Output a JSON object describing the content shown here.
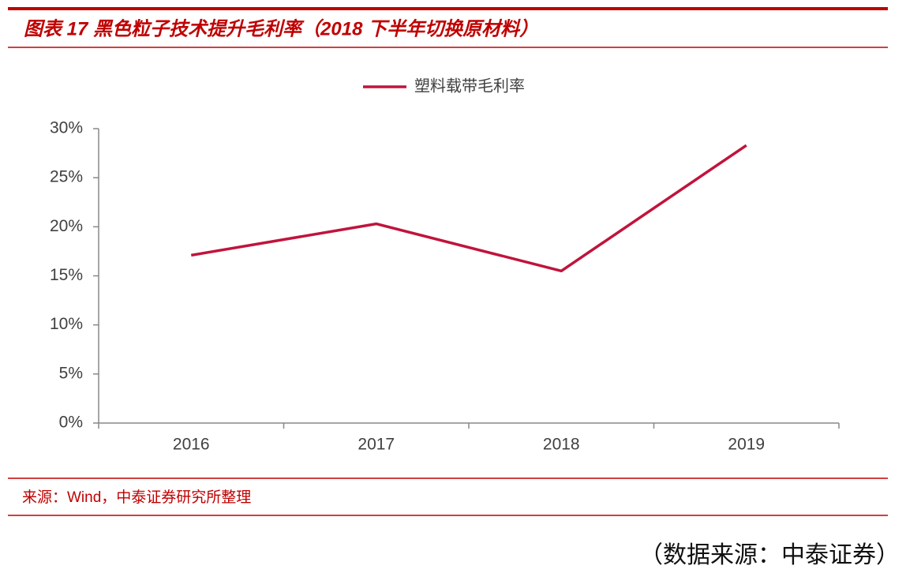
{
  "chart_data": {
    "type": "line",
    "title": "图表 17 黑色粒子技术提升毛利率（2018 下半年切换原材料）",
    "categories": [
      "2016",
      "2017",
      "2018",
      "2019"
    ],
    "series": [
      {
        "name": "塑料载带毛利率",
        "color": "#c0143c",
        "values": [
          17.1,
          20.3,
          15.5,
          28.3
        ]
      }
    ],
    "ylim": [
      0,
      30
    ],
    "yticks": [
      {
        "value": 0,
        "label": "0%"
      },
      {
        "value": 5,
        "label": "5%"
      },
      {
        "value": 10,
        "label": "10%"
      },
      {
        "value": 15,
        "label": "15%"
      },
      {
        "value": 20,
        "label": "20%"
      },
      {
        "value": 25,
        "label": "25%"
      },
      {
        "value": 30,
        "label": "30%"
      }
    ],
    "grid": false,
    "legend": "top",
    "source": "来源：Wind，中泰证券研究所整理",
    "footer": "（数据来源：中泰证券）"
  }
}
